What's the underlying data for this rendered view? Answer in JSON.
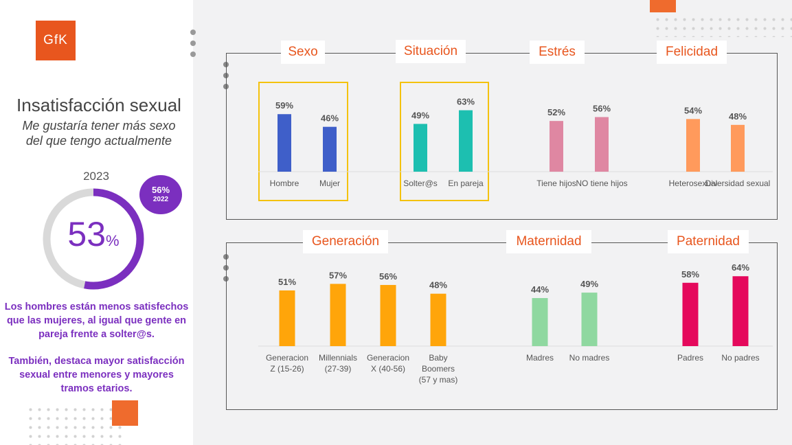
{
  "logo": "GfK",
  "title": "Insatisfacción sexual",
  "subtitle": [
    "Me gustaría tener más sexo",
    "del que tengo actualmente"
  ],
  "main_stat": {
    "year": "2023",
    "value": 53,
    "value_text": "53",
    "unit": "%",
    "prev_value": "56%",
    "prev_year": "2022"
  },
  "notes": [
    [
      "Los hombres están menos satisfechos",
      "que las mujeres, al igual que gente en",
      "pareja frente a solter@s."
    ],
    [
      "También, destaca mayor satisfacción",
      "sexual entre menores y mayores",
      "tramos etarios."
    ]
  ],
  "colors": {
    "accent": "#e8561e",
    "purple": "#7b2fbf",
    "highlight": "#f4c20d"
  },
  "chart_data": [
    {
      "type": "bar",
      "title": "Sexo",
      "categories": [
        [
          "Hombre"
        ],
        [
          "Mujer"
        ]
      ],
      "values": [
        59,
        46
      ],
      "colors": [
        "#3f5fc9",
        "#3f5fc9"
      ],
      "highlighted": true
    },
    {
      "type": "bar",
      "title": "Situación",
      "categories": [
        [
          "Solter@s"
        ],
        [
          "En pareja"
        ]
      ],
      "values": [
        49,
        63
      ],
      "colors": [
        "#1dbfb0",
        "#1dbfb0"
      ],
      "highlighted": true
    },
    {
      "type": "bar",
      "title": "Estrés",
      "categories": [
        [
          "Tiene hijos"
        ],
        [
          "NO tiene hijos"
        ]
      ],
      "values": [
        52,
        56
      ],
      "colors": [
        "#df87a2",
        "#df87a2"
      ],
      "highlighted": false
    },
    {
      "type": "bar",
      "title": "Felicidad",
      "categories": [
        [
          "Heterosexual"
        ],
        [
          "Diversidad sexual"
        ]
      ],
      "values": [
        54,
        48
      ],
      "colors": [
        "#ff9a5c",
        "#ff9a5c"
      ],
      "highlighted": false
    },
    {
      "type": "bar",
      "title": "Generación",
      "categories": [
        [
          "Generacion",
          "Z (15-26)"
        ],
        [
          "Millennials",
          "(27-39)"
        ],
        [
          "Generacion",
          "X (40-56)"
        ],
        [
          "Baby",
          "Boomers",
          "(57 y mas)"
        ]
      ],
      "values": [
        51,
        57,
        56,
        48
      ],
      "colors": [
        "#ffa50a",
        "#ffa50a",
        "#ffa50a",
        "#ffa50a"
      ],
      "highlighted": false
    },
    {
      "type": "bar",
      "title": "Maternidad",
      "categories": [
        [
          "Madres"
        ],
        [
          "No madres"
        ]
      ],
      "values": [
        44,
        49
      ],
      "colors": [
        "#8fd8a0",
        "#8fd8a0"
      ],
      "highlighted": false
    },
    {
      "type": "bar",
      "title": "Paternidad",
      "categories": [
        [
          "Padres"
        ],
        [
          "No padres"
        ]
      ],
      "values": [
        58,
        64
      ],
      "colors": [
        "#e5095c",
        "#e5095c"
      ],
      "highlighted": false
    }
  ]
}
